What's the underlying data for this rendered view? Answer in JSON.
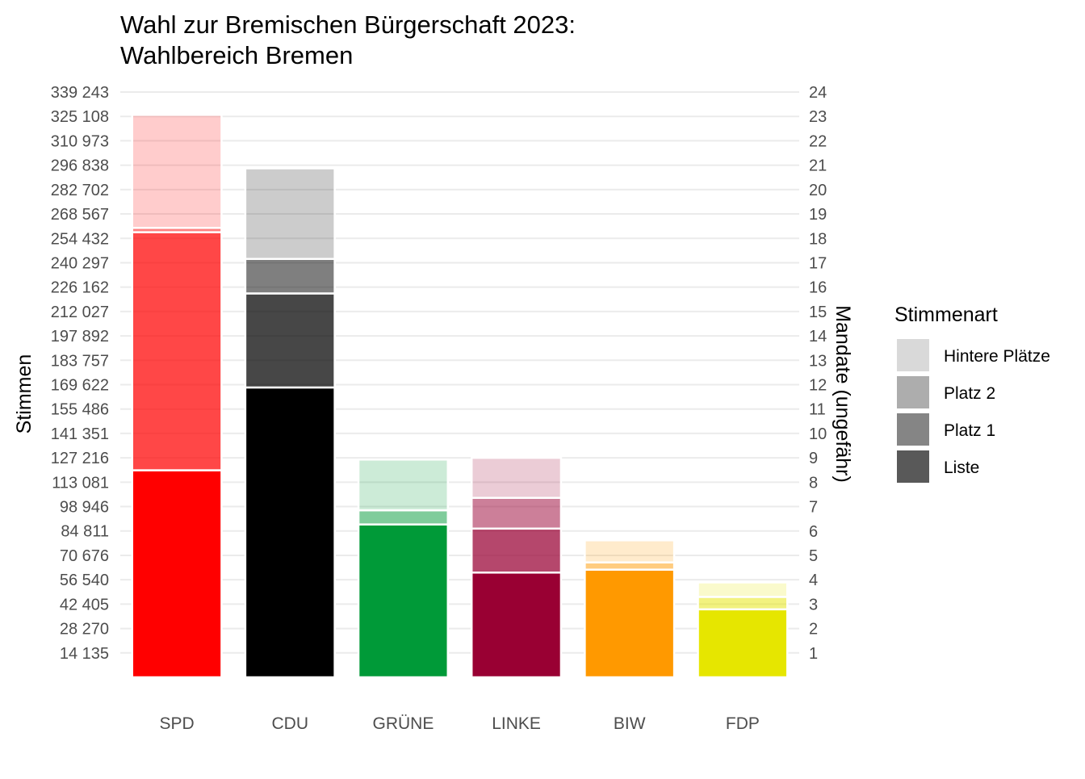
{
  "chart_data": {
    "type": "bar",
    "stacked": true,
    "title_line1": "Wahl zur Bremischen Bürgerschaft 2023:",
    "title_line2": "Wahlbereich Bremen",
    "ylabel": "Stimmen",
    "y2label": "Mandate (ungefähr)",
    "ylim": [
      0,
      339243
    ],
    "y2lim": [
      0,
      24
    ],
    "grid": true,
    "categories": [
      "SPD",
      "CDU",
      "GRÜNE",
      "LINKE",
      "BIW",
      "FDP"
    ],
    "y_ticks": [
      {
        "value": 14135,
        "label": "14 135"
      },
      {
        "value": 28270,
        "label": "28 270"
      },
      {
        "value": 42405,
        "label": "42 405"
      },
      {
        "value": 56540,
        "label": "56 540"
      },
      {
        "value": 70676,
        "label": "70 676"
      },
      {
        "value": 84811,
        "label": "84 811"
      },
      {
        "value": 98946,
        "label": "98 946"
      },
      {
        "value": 113081,
        "label": "113 081"
      },
      {
        "value": 127216,
        "label": "127 216"
      },
      {
        "value": 141351,
        "label": "141 351"
      },
      {
        "value": 155486,
        "label": "155 486"
      },
      {
        "value": 169622,
        "label": "169 622"
      },
      {
        "value": 183757,
        "label": "183 757"
      },
      {
        "value": 197892,
        "label": "197 892"
      },
      {
        "value": 212027,
        "label": "212 027"
      },
      {
        "value": 226162,
        "label": "226 162"
      },
      {
        "value": 240297,
        "label": "240 297"
      },
      {
        "value": 254432,
        "label": "254 432"
      },
      {
        "value": 268567,
        "label": "268 567"
      },
      {
        "value": 282702,
        "label": "282 702"
      },
      {
        "value": 296838,
        "label": "296 838"
      },
      {
        "value": 310973,
        "label": "310 973"
      },
      {
        "value": 325108,
        "label": "325 108"
      },
      {
        "value": 339243,
        "label": "339 243"
      }
    ],
    "y2_ticks": [
      {
        "value": 1,
        "label": "1"
      },
      {
        "value": 2,
        "label": "2"
      },
      {
        "value": 3,
        "label": "3"
      },
      {
        "value": 4,
        "label": "4"
      },
      {
        "value": 5,
        "label": "5"
      },
      {
        "value": 6,
        "label": "6"
      },
      {
        "value": 7,
        "label": "7"
      },
      {
        "value": 8,
        "label": "8"
      },
      {
        "value": 9,
        "label": "9"
      },
      {
        "value": 10,
        "label": "10"
      },
      {
        "value": 11,
        "label": "11"
      },
      {
        "value": 12,
        "label": "12"
      },
      {
        "value": 13,
        "label": "13"
      },
      {
        "value": 14,
        "label": "14"
      },
      {
        "value": 15,
        "label": "15"
      },
      {
        "value": 16,
        "label": "16"
      },
      {
        "value": 17,
        "label": "17"
      },
      {
        "value": 18,
        "label": "18"
      },
      {
        "value": 19,
        "label": "19"
      },
      {
        "value": 20,
        "label": "20"
      },
      {
        "value": 21,
        "label": "21"
      },
      {
        "value": 22,
        "label": "22"
      },
      {
        "value": 23,
        "label": "23"
      },
      {
        "value": 24,
        "label": "24"
      }
    ],
    "series": [
      {
        "name": "Liste",
        "values": [
          120000,
          168000,
          88600,
          60700,
          62400,
          39400
        ]
      },
      {
        "name": "Platz 1",
        "values": [
          138000,
          54500,
          0,
          25500,
          0,
          0
        ]
      },
      {
        "name": "Platz 2",
        "values": [
          2500,
          20000,
          8200,
          17800,
          4200,
          7200
        ]
      },
      {
        "name": "Hintere Plätze",
        "values": [
          65500,
          52500,
          29400,
          23200,
          12800,
          8400
        ]
      }
    ],
    "colors": {
      "SPD": "#ff0000",
      "CDU": "#000000",
      "GRÜNE": "#009a38",
      "LINKE": "#990033",
      "BIW": "#ff9900",
      "FDP": "#e6e600"
    },
    "legend": {
      "title": "Stimmenart",
      "position": "right",
      "items": [
        {
          "label": "Hintere Plätze",
          "color": "#d9d9d9"
        },
        {
          "label": "Platz 2",
          "color": "#adadad"
        },
        {
          "label": "Platz 1",
          "color": "#858585"
        },
        {
          "label": "Liste",
          "color": "#595959"
        }
      ]
    }
  }
}
